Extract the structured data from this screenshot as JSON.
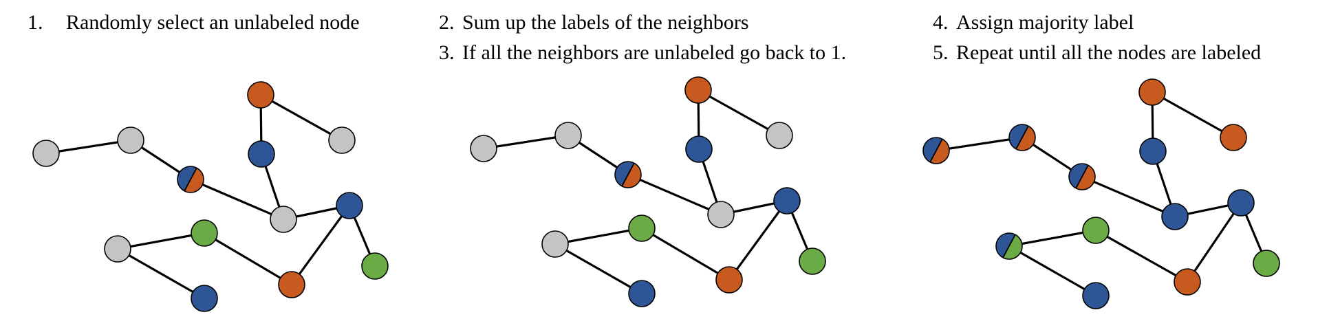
{
  "steps": [
    {
      "num": "1.",
      "text": "Randomly select an unlabeled node"
    },
    {
      "num": "2.",
      "text": "Sum up the labels of the neighbors"
    },
    {
      "num": "3.",
      "text": "If all the neighbors are unlabeled go back to 1."
    },
    {
      "num": "4.",
      "text": "Assign majority label"
    },
    {
      "num": "5.",
      "text": "Repeat until all the nodes are labeled"
    }
  ],
  "colors": {
    "unlabeled": "#c4c4c4",
    "orange": "#c85a20",
    "blue": "#2e5596",
    "green": "#6aab45",
    "edge": "#000000"
  },
  "graphs": [
    {
      "name": "panel-1",
      "nodes": [
        "unlabeled",
        "unlabeled",
        "blue|orange",
        "orange",
        "blue",
        "unlabeled",
        "unlabeled",
        "blue",
        "unlabeled",
        "green",
        "orange",
        "green",
        "blue"
      ],
      "edges": [
        [
          0,
          1
        ],
        [
          1,
          2
        ],
        [
          2,
          6
        ],
        [
          3,
          4
        ],
        [
          3,
          5
        ],
        [
          4,
          6
        ],
        [
          6,
          7
        ],
        [
          7,
          10
        ],
        [
          7,
          11
        ],
        [
          8,
          9
        ],
        [
          8,
          12
        ],
        [
          9,
          10
        ]
      ]
    },
    {
      "name": "panel-2",
      "nodes": [
        "unlabeled",
        "unlabeled",
        "blue|orange",
        "orange",
        "blue",
        "unlabeled",
        "unlabeled",
        "blue",
        "unlabeled",
        "green",
        "orange",
        "green",
        "blue"
      ],
      "edges": [
        [
          0,
          1
        ],
        [
          1,
          2
        ],
        [
          2,
          6
        ],
        [
          3,
          4
        ],
        [
          3,
          5
        ],
        [
          4,
          6
        ],
        [
          6,
          7
        ],
        [
          7,
          10
        ],
        [
          7,
          11
        ],
        [
          8,
          9
        ],
        [
          8,
          12
        ],
        [
          9,
          10
        ]
      ]
    },
    {
      "name": "panel-3",
      "nodes": [
        "blue|orange",
        "blue|orange",
        "blue|orange",
        "orange",
        "blue",
        "orange",
        "blue",
        "blue",
        "blue|green",
        "green",
        "orange",
        "green",
        "blue"
      ],
      "edges": [
        [
          0,
          1
        ],
        [
          1,
          2
        ],
        [
          2,
          6
        ],
        [
          3,
          4
        ],
        [
          3,
          5
        ],
        [
          4,
          6
        ],
        [
          6,
          7
        ],
        [
          7,
          10
        ],
        [
          7,
          11
        ],
        [
          8,
          9
        ],
        [
          8,
          12
        ],
        [
          9,
          10
        ]
      ]
    }
  ]
}
